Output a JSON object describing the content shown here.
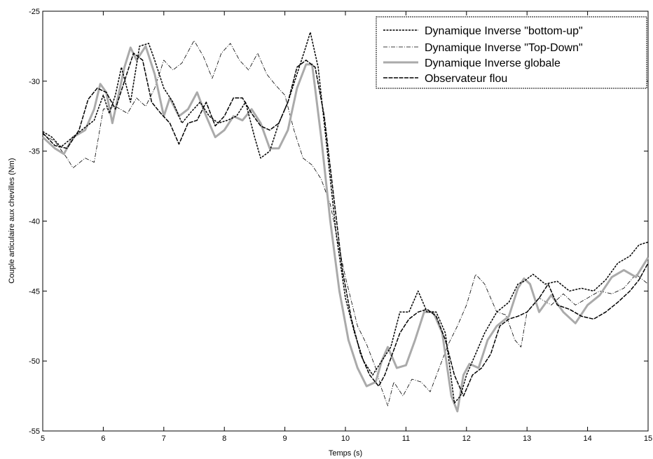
{
  "chart_data": {
    "type": "line",
    "title": "",
    "xlabel": "Temps (s)",
    "ylabel": "Couple articulaire aux chevilles (Nm)",
    "xlim": [
      5,
      15
    ],
    "ylim": [
      -55,
      -25
    ],
    "xticks": [
      5,
      6,
      7,
      8,
      9,
      10,
      11,
      12,
      13,
      14,
      15
    ],
    "yticks": [
      -25,
      -30,
      -35,
      -40,
      -45,
      -50,
      -55
    ],
    "grid": false,
    "legend_position": "top-right",
    "series": [
      {
        "name": "Dynamique Inverse \"bottom-up\"",
        "color": "#000000",
        "style": "dashed",
        "x": [
          5.0,
          5.15,
          5.3,
          5.5,
          5.7,
          5.85,
          6.0,
          6.1,
          6.2,
          6.3,
          6.45,
          6.6,
          6.75,
          6.85,
          7.0,
          7.15,
          7.3,
          7.45,
          7.6,
          7.75,
          7.9,
          8.05,
          8.2,
          8.35,
          8.5,
          8.6,
          8.75,
          8.9,
          9.05,
          9.2,
          9.35,
          9.42,
          9.55,
          9.7,
          9.85,
          10.0,
          10.15,
          10.3,
          10.45,
          10.6,
          10.75,
          10.9,
          11.05,
          11.2,
          11.35,
          11.5,
          11.65,
          11.8,
          11.9,
          12.0,
          12.15,
          12.3,
          12.5,
          12.7,
          12.85,
          12.95,
          13.1,
          13.3,
          13.5,
          13.7,
          13.9,
          14.1,
          14.3,
          14.5,
          14.7,
          14.85,
          15.0
        ],
        "y": [
          -33.6,
          -34.0,
          -34.7,
          -34.0,
          -33.3,
          -32.8,
          -31.0,
          -32.3,
          -31.0,
          -29.0,
          -31.5,
          -27.5,
          -27.3,
          -28.5,
          -30.5,
          -31.5,
          -33.0,
          -32.2,
          -31.5,
          -32.5,
          -33.0,
          -32.8,
          -32.5,
          -31.5,
          -34.0,
          -35.5,
          -35.0,
          -33.0,
          -31.5,
          -29.5,
          -27.5,
          -26.5,
          -29.0,
          -35.0,
          -41.0,
          -45.5,
          -48.0,
          -50.0,
          -51.0,
          -50.0,
          -49.0,
          -46.5,
          -46.5,
          -45.0,
          -46.5,
          -46.5,
          -48.0,
          -53.0,
          -52.5,
          -51.0,
          -49.5,
          -48.0,
          -46.5,
          -45.8,
          -44.5,
          -44.3,
          -43.8,
          -44.5,
          -44.3,
          -45.0,
          -44.8,
          -45.0,
          -44.2,
          -43.0,
          -42.5,
          -41.7,
          -41.5
        ]
      },
      {
        "name": "Dynamique Inverse \"Top-Down\"",
        "color": "#000000",
        "style": "dashdot",
        "x": [
          5.0,
          5.2,
          5.4,
          5.5,
          5.7,
          5.85,
          6.0,
          6.2,
          6.4,
          6.55,
          6.7,
          6.85,
          7.0,
          7.15,
          7.3,
          7.5,
          7.65,
          7.8,
          7.95,
          8.1,
          8.25,
          8.4,
          8.55,
          8.7,
          8.85,
          9.0,
          9.15,
          9.3,
          9.45,
          9.6,
          9.75,
          9.9,
          10.0,
          10.2,
          10.35,
          10.5,
          10.6,
          10.7,
          10.8,
          10.95,
          11.1,
          11.25,
          11.4,
          11.55,
          11.7,
          11.85,
          12.0,
          12.15,
          12.3,
          12.5,
          12.65,
          12.8,
          12.9,
          13.0,
          13.2,
          13.4,
          13.6,
          13.8,
          14.0,
          14.2,
          14.4,
          14.6,
          14.8,
          15.0
        ],
        "y": [
          -33.8,
          -34.3,
          -35.5,
          -36.2,
          -35.5,
          -35.8,
          -32.0,
          -31.8,
          -32.3,
          -31.2,
          -31.8,
          -30.5,
          -28.5,
          -29.2,
          -28.7,
          -27.1,
          -28.2,
          -29.8,
          -28.0,
          -27.3,
          -28.5,
          -29.2,
          -28.0,
          -29.5,
          -30.3,
          -31.0,
          -33.5,
          -35.5,
          -36.0,
          -37.0,
          -38.8,
          -42.0,
          -44.0,
          -47.5,
          -48.8,
          -50.5,
          -52.0,
          -53.2,
          -51.5,
          -52.5,
          -51.3,
          -51.5,
          -52.2,
          -50.5,
          -48.8,
          -47.5,
          -46.0,
          -43.8,
          -44.5,
          -46.5,
          -46.7,
          -48.5,
          -49.0,
          -46.5,
          -45.5,
          -46.0,
          -45.2,
          -46.0,
          -45.5,
          -45.0,
          -45.2,
          -44.8,
          -43.8,
          -44.5
        ]
      },
      {
        "name": "Dynamique Inverse globale",
        "color": "#aaaaaa",
        "style": "thick",
        "x": [
          5.0,
          5.2,
          5.35,
          5.5,
          5.7,
          5.85,
          5.95,
          6.05,
          6.15,
          6.25,
          6.35,
          6.45,
          6.55,
          6.7,
          6.85,
          7.0,
          7.1,
          7.25,
          7.4,
          7.55,
          7.7,
          7.85,
          8.0,
          8.15,
          8.3,
          8.45,
          8.6,
          8.75,
          8.9,
          9.05,
          9.2,
          9.35,
          9.45,
          9.6,
          9.75,
          9.9,
          10.05,
          10.2,
          10.35,
          10.5,
          10.6,
          10.7,
          10.85,
          11.0,
          11.15,
          11.3,
          11.45,
          11.6,
          11.75,
          11.85,
          11.95,
          12.05,
          12.2,
          12.35,
          12.5,
          12.7,
          12.85,
          12.95,
          13.05,
          13.2,
          13.4,
          13.6,
          13.8,
          14.0,
          14.2,
          14.4,
          14.6,
          14.8,
          15.0
        ],
        "y": [
          -34.0,
          -34.8,
          -35.2,
          -34.0,
          -33.5,
          -32.0,
          -30.2,
          -30.8,
          -33.0,
          -31.0,
          -29.0,
          -27.6,
          -28.5,
          -27.5,
          -29.5,
          -32.5,
          -31.2,
          -32.5,
          -32.0,
          -30.8,
          -32.5,
          -34.0,
          -33.5,
          -32.5,
          -32.8,
          -32.0,
          -33.0,
          -34.8,
          -34.8,
          -33.5,
          -30.5,
          -28.8,
          -28.8,
          -34.0,
          -40.0,
          -45.0,
          -48.5,
          -50.5,
          -51.8,
          -51.5,
          -50.0,
          -49.0,
          -50.5,
          -50.3,
          -48.5,
          -46.5,
          -46.5,
          -48.0,
          -52.5,
          -53.6,
          -51.0,
          -50.2,
          -50.5,
          -48.5,
          -47.5,
          -46.8,
          -44.8,
          -44.1,
          -44.5,
          -46.5,
          -45.3,
          -46.5,
          -47.3,
          -46.0,
          -45.3,
          -44.0,
          -43.5,
          -44.0,
          -42.6
        ]
      },
      {
        "name": "Observateur flou",
        "color": "#000000",
        "style": "dashed",
        "x": [
          5.0,
          5.2,
          5.4,
          5.6,
          5.75,
          5.9,
          6.05,
          6.2,
          6.35,
          6.5,
          6.65,
          6.8,
          6.95,
          7.1,
          7.25,
          7.4,
          7.55,
          7.7,
          7.85,
          8.0,
          8.15,
          8.3,
          8.45,
          8.6,
          8.75,
          8.9,
          9.05,
          9.2,
          9.35,
          9.5,
          9.65,
          9.8,
          9.95,
          10.1,
          10.25,
          10.4,
          10.55,
          10.65,
          10.75,
          10.9,
          11.05,
          11.2,
          11.35,
          11.5,
          11.65,
          11.8,
          11.95,
          12.1,
          12.25,
          12.4,
          12.55,
          12.7,
          12.85,
          13.0,
          13.2,
          13.35,
          13.5,
          13.7,
          13.9,
          14.1,
          14.3,
          14.5,
          14.7,
          14.85,
          15.0
        ],
        "y": [
          -33.7,
          -34.6,
          -34.8,
          -33.5,
          -31.3,
          -30.5,
          -30.8,
          -32.0,
          -30.0,
          -28.0,
          -28.5,
          -31.5,
          -32.3,
          -33.0,
          -34.5,
          -33.0,
          -32.8,
          -31.5,
          -33.2,
          -32.5,
          -31.2,
          -31.2,
          -32.3,
          -33.2,
          -33.5,
          -33.0,
          -31.5,
          -29.0,
          -28.5,
          -29.0,
          -32.5,
          -38.0,
          -43.5,
          -47.0,
          -49.5,
          -51.0,
          -51.8,
          -51.0,
          -49.8,
          -48.0,
          -47.0,
          -46.5,
          -46.3,
          -46.8,
          -48.5,
          -51.0,
          -52.5,
          -51.0,
          -50.5,
          -49.5,
          -47.5,
          -47.0,
          -46.8,
          -46.5,
          -45.5,
          -44.5,
          -46.0,
          -46.3,
          -46.8,
          -47.0,
          -46.5,
          -45.8,
          -45.0,
          -44.2,
          -43.0
        ]
      }
    ]
  }
}
